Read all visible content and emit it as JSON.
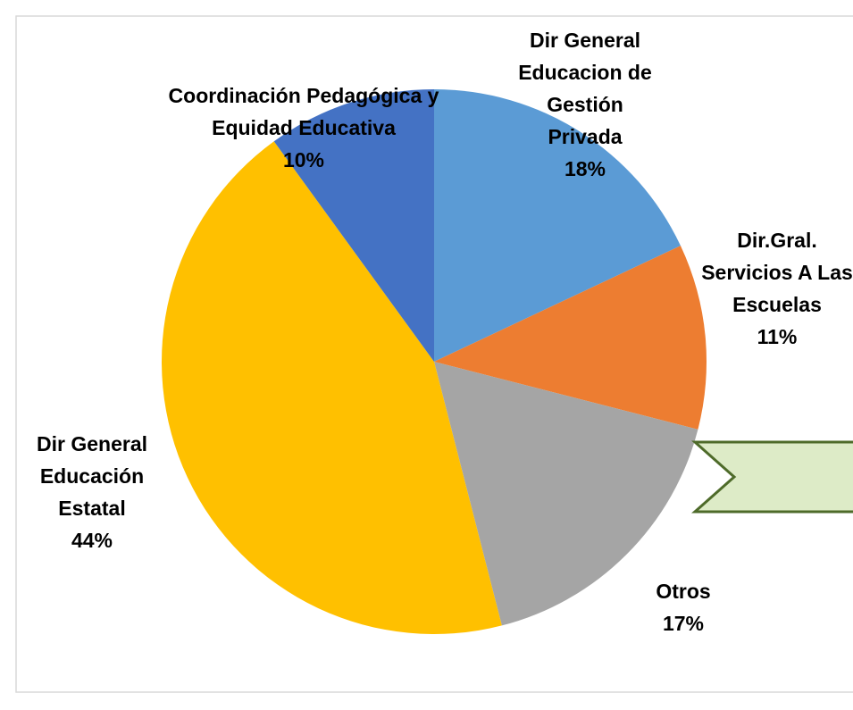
{
  "chart_data": {
    "type": "pie",
    "categories": [
      "Dir General Educacion de Gestión Privada",
      "Dir.Gral. Servicios A Las Escuelas",
      "Otros",
      "Dir General Educación Estatal",
      "Coordinación Pedagógica y Equidad Educativa"
    ],
    "values": [
      18,
      11,
      17,
      44,
      10
    ],
    "value_labels": [
      "18%",
      "11%",
      "17%",
      "44%",
      "10%"
    ],
    "colors": [
      "#5B9BD5",
      "#ED7D31",
      "#A5A5A5",
      "#FFC000",
      "#4472C4"
    ]
  }
}
